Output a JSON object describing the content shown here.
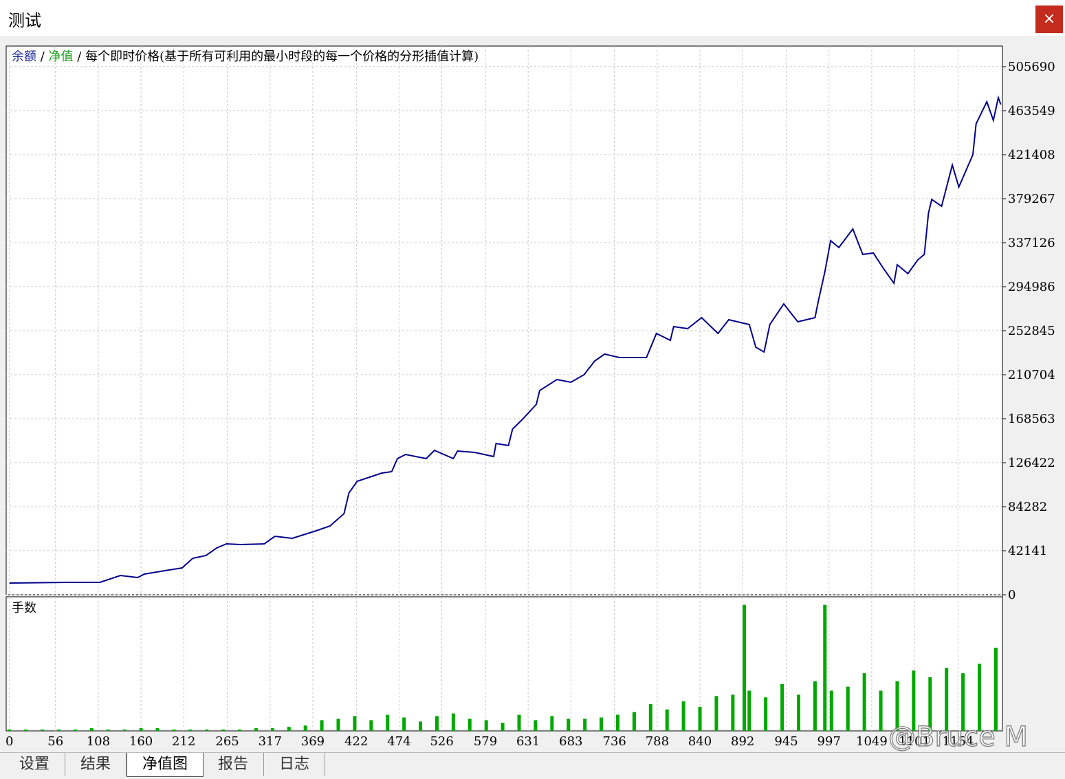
{
  "window": {
    "title": "测试",
    "close": "×"
  },
  "tabs": [
    "设置",
    "结果",
    "净值图",
    "报告",
    "日志"
  ],
  "active_tab": 2,
  "watermark": "@Bruce M",
  "chart_data": [
    {
      "type": "line",
      "title_parts": [
        {
          "text": "余额",
          "color": "#1f2a9a"
        },
        {
          "text": "/",
          "color": "#000000"
        },
        {
          "text": "净值",
          "color": "#1a9a1a"
        },
        {
          "text": "/",
          "color": "#000000"
        },
        {
          "text": "每个即时价格(基于所有可利用的最小时段的每一个价格的分形插值计算)",
          "color": "#000000"
        }
      ],
      "x": [
        0,
        72,
        110,
        135,
        156,
        164,
        189,
        210,
        223,
        239,
        252,
        264,
        281,
        310,
        323,
        344,
        373,
        390,
        407,
        413,
        423,
        453,
        465,
        472,
        482,
        507,
        517,
        540,
        545,
        566,
        589,
        592,
        607,
        612,
        624,
        641,
        645,
        666,
        683,
        699,
        712,
        724,
        742,
        775,
        787,
        804,
        808,
        825,
        842,
        862,
        875,
        900,
        908,
        918,
        925,
        942,
        959,
        980,
        984,
        992,
        999,
        1009,
        1026,
        1038,
        1051,
        1063,
        1076,
        1080,
        1093,
        1105,
        1113,
        1118,
        1122,
        1134,
        1147,
        1155,
        1172,
        1176,
        1189,
        1197,
        1203,
        1206
      ],
      "series": [
        {
          "color": "#00008b",
          "values": [
            11193,
            11851,
            11851,
            18435,
            16460,
            19752,
            23044,
            25678,
            34895,
            37529,
            44771,
            48722,
            48063,
            48722,
            55964,
            53989,
            61231,
            65840,
            77691,
            97443,
            108636,
            116537,
            117854,
            130363,
            134314,
            130363,
            138264,
            130363,
            137606,
            136289,
            132338,
            144848,
            142873,
            158674,
            167892,
            182377,
            195545,
            206079,
            203446,
            210688,
            223856,
            230440,
            227148,
            227148,
            250192,
            243608,
            256776,
            254801,
            265335,
            250192,
            263360,
            258751,
            237024,
            232415,
            258751,
            278503,
            261385,
            265335,
            281137,
            309448,
            339076,
            332492,
            350269,
            325908,
            327225,
            312740,
            298255,
            316032,
            307473,
            320641,
            325908,
            365412,
            378580,
            371996,
            411500,
            390431,
            421376,
            451004,
            472073,
            454296,
            476023,
            469439
          ]
        }
      ],
      "xlim": [
        -4,
        1208
      ],
      "ylim": [
        0,
        525400
      ],
      "yticks": [
        0,
        42141,
        84282,
        126422,
        168563,
        210704,
        252845,
        294986,
        337126,
        379267,
        421408,
        463549,
        505690
      ],
      "xticks": [
        0,
        56,
        108,
        160,
        212,
        265,
        317,
        369,
        422,
        474,
        526,
        579,
        631,
        683,
        736,
        788,
        840,
        892,
        945,
        997,
        1049,
        1101,
        1154
      ],
      "grid": true
    },
    {
      "type": "bar",
      "title": "手数",
      "color": "#00a800",
      "x": [
        0,
        20,
        40,
        60,
        80,
        100,
        120,
        140,
        160,
        180,
        200,
        220,
        240,
        260,
        280,
        300,
        320,
        340,
        360,
        380,
        400,
        420,
        440,
        460,
        480,
        500,
        520,
        540,
        560,
        580,
        600,
        620,
        640,
        660,
        680,
        700,
        720,
        740,
        760,
        780,
        800,
        820,
        840,
        860,
        880,
        894,
        900,
        920,
        940,
        960,
        980,
        992,
        1000,
        1020,
        1040,
        1060,
        1080,
        1100,
        1120,
        1140,
        1160,
        1180,
        1200
      ],
      "values": [
        1,
        1,
        1,
        1,
        1,
        2,
        1,
        1,
        2,
        2,
        1,
        1,
        1,
        1,
        1,
        2,
        2,
        3,
        4,
        8,
        9,
        11,
        8,
        12,
        10,
        7,
        11,
        13,
        9,
        8,
        6,
        12,
        8,
        11,
        9,
        9,
        10,
        12,
        14,
        20,
        16,
        22,
        18,
        26,
        27,
        94,
        30,
        25,
        35,
        27,
        37,
        94,
        30,
        33,
        43,
        30,
        37,
        45,
        40,
        47,
        43,
        50,
        62
      ],
      "xlim": [
        -4,
        1208
      ],
      "ylim": [
        0,
        100
      ],
      "grid": true
    }
  ]
}
